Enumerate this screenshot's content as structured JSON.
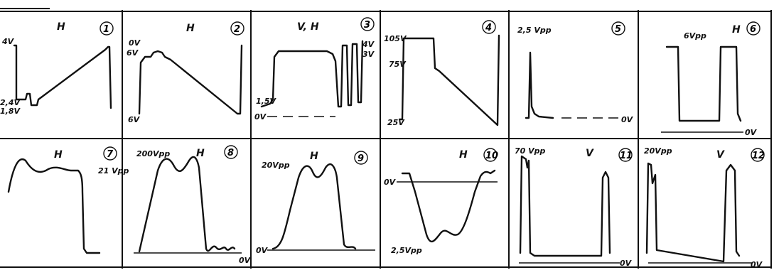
{
  "panels": [
    {
      "number": "1",
      "mode": "H",
      "labels": [
        "4V",
        "2,4V",
        "1,8V"
      ]
    },
    {
      "number": "2",
      "mode": "H",
      "labels": [
        "0V",
        "6V",
        "6V"
      ]
    },
    {
      "number": "3",
      "mode": "V, H",
      "labels": [
        "1,5V",
        "0V",
        "4V",
        "3V"
      ]
    },
    {
      "number": "4",
      "mode": "",
      "labels": [
        "105V",
        "75V",
        "25V"
      ]
    },
    {
      "number": "5",
      "mode": "",
      "labels": [
        "2,5 Vpp",
        "0V"
      ]
    },
    {
      "number": "6",
      "mode": "H",
      "labels": [
        "6Vpp",
        "0V"
      ]
    },
    {
      "number": "7",
      "mode": "H",
      "labels": [
        "21 Vpp"
      ]
    },
    {
      "number": "8",
      "mode": "H",
      "labels": [
        "200Vpp",
        "0V"
      ]
    },
    {
      "number": "9",
      "mode": "H",
      "labels": [
        "20Vpp",
        "0V"
      ]
    },
    {
      "number": "10",
      "mode": "H",
      "labels": [
        "0V",
        "2,5Vpp"
      ]
    },
    {
      "number": "11",
      "mode": "V",
      "labels": [
        "70 Vpp",
        "0V"
      ]
    },
    {
      "number": "12",
      "mode": "V",
      "labels": [
        "20Vpp",
        "0V"
      ]
    }
  ]
}
